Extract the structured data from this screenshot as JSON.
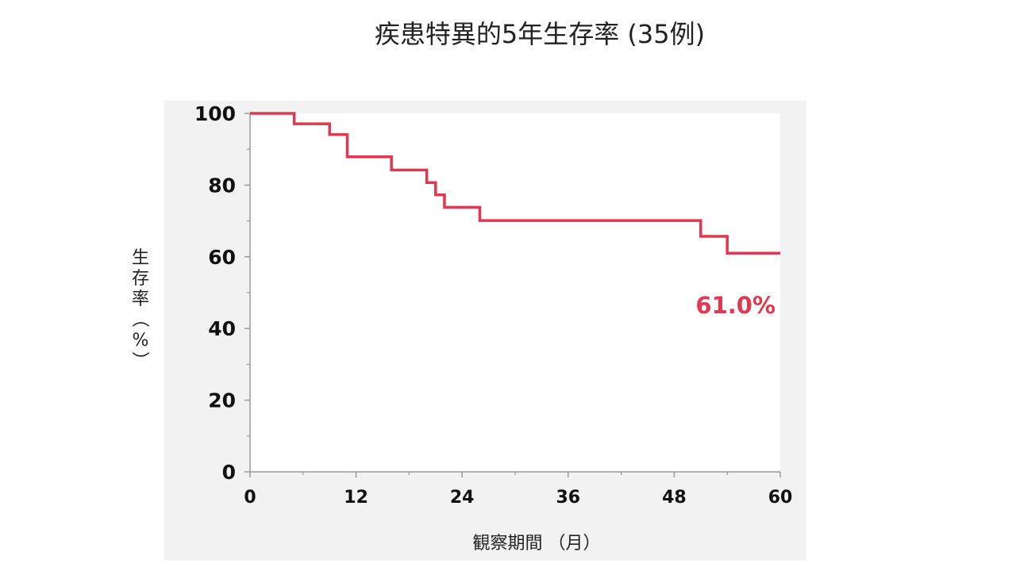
{
  "chart_data": {
    "type": "line",
    "title": "疾患特異的5年生存率 (35例)",
    "xlabel": "観察期間 （月）",
    "ylabel": "生存率（%）",
    "xlim": [
      0,
      60
    ],
    "ylim": [
      0,
      100
    ],
    "xticks": [
      "0",
      "12",
      "24",
      "36",
      "48",
      "60"
    ],
    "yticks": [
      "0",
      "20",
      "40",
      "60",
      "80",
      "100"
    ],
    "grid": false,
    "series": [
      {
        "color": "#e0394f",
        "step": true,
        "x": [
          0,
          5,
          9,
          11,
          16,
          20,
          21,
          22,
          26,
          51,
          54,
          60
        ],
        "y": [
          100,
          97.1,
          94.1,
          87.9,
          84.2,
          80.7,
          77.3,
          73.8,
          70.1,
          65.7,
          61.0,
          61.0
        ]
      }
    ],
    "annotations": [
      {
        "text": "61.0%",
        "x": 60,
        "y": 46.5,
        "color": "#e0394f"
      }
    ]
  }
}
